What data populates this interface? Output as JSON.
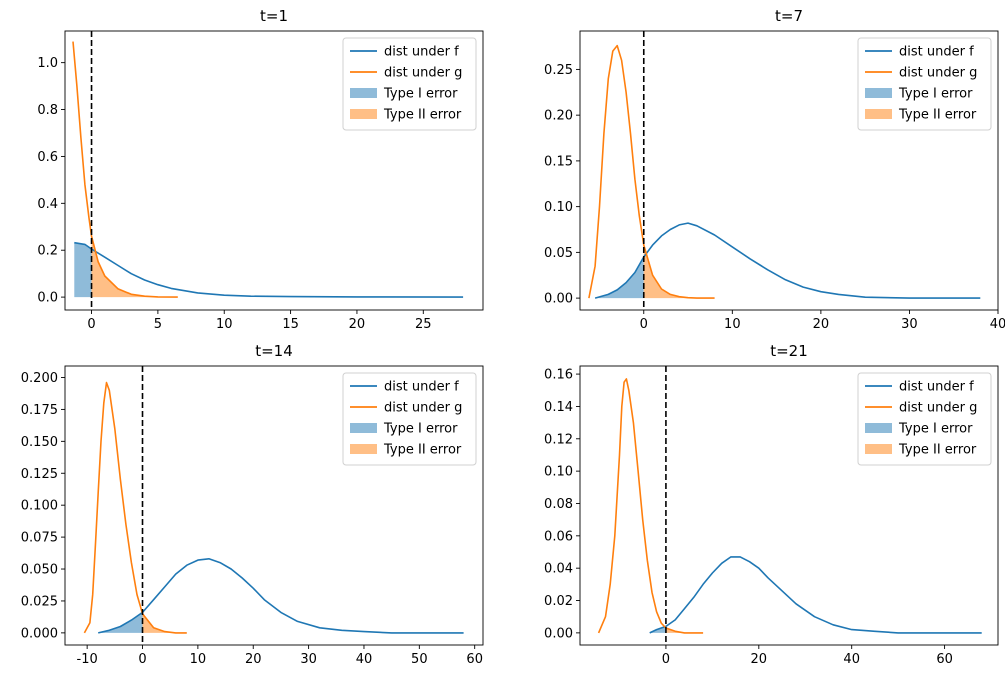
{
  "colors": {
    "f": "#1f77b4",
    "g": "#ff7f0e",
    "type1_fill": "#8fbbd9",
    "type2_fill": "#ffbf86",
    "threshold": "#000000"
  },
  "legend": {
    "placement": "top-right",
    "entries": [
      "dist under f",
      "dist under g",
      "Type I error",
      "Type II error"
    ]
  },
  "chart_data": [
    {
      "type": "line",
      "title": "t=1",
      "xlim": [
        -2.0,
        29.5
      ],
      "ylim": [
        -0.055,
        1.135
      ],
      "xticks": [
        0,
        5,
        10,
        15,
        20,
        25
      ],
      "yticks": [
        0.0,
        0.2,
        0.4,
        0.6,
        0.8,
        1.0
      ],
      "ytick_labels": [
        "0.0",
        "0.2",
        "0.4",
        "0.6",
        "0.8",
        "1.0"
      ],
      "threshold_x": 0,
      "series": [
        {
          "name": "dist under f",
          "x": [
            -1.3,
            -0.5,
            0,
            1,
            2,
            3,
            4,
            5,
            6,
            8,
            10,
            12,
            15,
            20,
            28
          ],
          "y": [
            0.232,
            0.225,
            0.205,
            0.17,
            0.135,
            0.1,
            0.073,
            0.053,
            0.037,
            0.018,
            0.008,
            0.004,
            0.002,
            0.001,
            0.0
          ]
        },
        {
          "name": "dist under g",
          "x": [
            -1.4,
            -1.1,
            -0.8,
            -0.5,
            -0.2,
            0,
            0.5,
            1,
            2,
            3,
            4,
            5,
            6.5
          ],
          "y": [
            1.09,
            0.9,
            0.68,
            0.48,
            0.34,
            0.26,
            0.15,
            0.09,
            0.035,
            0.012,
            0.004,
            0.001,
            0.0
          ]
        }
      ]
    },
    {
      "type": "line",
      "title": "t=7",
      "xlim": [
        -7.2,
        40.0
      ],
      "ylim": [
        -0.013,
        0.292
      ],
      "xticks": [
        0,
        10,
        20,
        30,
        40
      ],
      "yticks": [
        0.0,
        0.05,
        0.1,
        0.15,
        0.2,
        0.25
      ],
      "ytick_labels": [
        "0.00",
        "0.05",
        "0.10",
        "0.15",
        "0.20",
        "0.25"
      ],
      "threshold_x": 0,
      "series": [
        {
          "name": "dist under f",
          "x": [
            -5.5,
            -4,
            -3,
            -2,
            -1,
            0,
            1,
            2,
            3,
            4,
            5,
            6,
            8,
            10,
            12,
            14,
            16,
            18,
            20,
            22,
            25,
            30,
            38
          ],
          "y": [
            0.0,
            0.004,
            0.009,
            0.017,
            0.028,
            0.045,
            0.058,
            0.068,
            0.075,
            0.08,
            0.082,
            0.079,
            0.069,
            0.056,
            0.043,
            0.031,
            0.02,
            0.012,
            0.007,
            0.004,
            0.001,
            0.0,
            0.0
          ]
        },
        {
          "name": "dist under g",
          "x": [
            -6.2,
            -5.5,
            -5,
            -4.5,
            -4,
            -3.5,
            -3,
            -2.5,
            -2,
            -1.5,
            -1,
            -0.5,
            0,
            1,
            2,
            3,
            4,
            5,
            6,
            8
          ],
          "y": [
            0.0,
            0.035,
            0.1,
            0.18,
            0.24,
            0.27,
            0.276,
            0.26,
            0.225,
            0.18,
            0.13,
            0.09,
            0.058,
            0.025,
            0.01,
            0.004,
            0.0015,
            0.0005,
            0.0,
            0.0
          ]
        }
      ]
    },
    {
      "type": "line",
      "title": "t=14",
      "xlim": [
        -14.0,
        61.5
      ],
      "ylim": [
        -0.0095,
        0.209
      ],
      "xticks": [
        -10,
        0,
        10,
        20,
        30,
        40,
        50,
        60
      ],
      "yticks": [
        0.0,
        0.025,
        0.05,
        0.075,
        0.1,
        0.125,
        0.15,
        0.175,
        0.2
      ],
      "ytick_labels": [
        "0.000",
        "0.025",
        "0.050",
        "0.075",
        "0.100",
        "0.125",
        "0.150",
        "0.175",
        "0.200"
      ],
      "threshold_x": 0,
      "series": [
        {
          "name": "dist under f",
          "x": [
            -8,
            -6,
            -4,
            -2,
            0,
            2,
            4,
            6,
            8,
            10,
            12,
            14,
            16,
            18,
            20,
            22,
            25,
            28,
            32,
            36,
            40,
            45,
            50,
            58
          ],
          "y": [
            0.0,
            0.002,
            0.005,
            0.01,
            0.016,
            0.026,
            0.036,
            0.046,
            0.053,
            0.057,
            0.058,
            0.055,
            0.05,
            0.043,
            0.035,
            0.026,
            0.016,
            0.009,
            0.004,
            0.002,
            0.001,
            0.0,
            0.0,
            0.0
          ]
        },
        {
          "name": "dist under g",
          "x": [
            -10.5,
            -9.5,
            -9,
            -8.5,
            -8,
            -7.5,
            -7,
            -6.5,
            -6,
            -5,
            -4,
            -3,
            -2,
            -1,
            0,
            2,
            4,
            6,
            8
          ],
          "y": [
            0.0,
            0.008,
            0.03,
            0.07,
            0.11,
            0.15,
            0.18,
            0.196,
            0.19,
            0.16,
            0.12,
            0.085,
            0.055,
            0.03,
            0.015,
            0.004,
            0.001,
            0.0,
            0.0
          ]
        }
      ]
    },
    {
      "type": "line",
      "title": "t=21",
      "xlim": [
        -18.5,
        71.5
      ],
      "ylim": [
        -0.0075,
        0.165
      ],
      "xticks": [
        0,
        20,
        40,
        60
      ],
      "yticks": [
        0.0,
        0.02,
        0.04,
        0.06,
        0.08,
        0.1,
        0.12,
        0.14,
        0.16
      ],
      "ytick_labels": [
        "0.00",
        "0.02",
        "0.04",
        "0.06",
        "0.08",
        "0.10",
        "0.12",
        "0.14",
        "0.16"
      ],
      "threshold_x": 0,
      "series": [
        {
          "name": "dist under f",
          "x": [
            -3.5,
            -2,
            0,
            2,
            4,
            6,
            8,
            10,
            12,
            14,
            16,
            18,
            20,
            22,
            25,
            28,
            32,
            36,
            40,
            45,
            50,
            55,
            60,
            68
          ],
          "y": [
            0.0,
            0.002,
            0.004,
            0.008,
            0.015,
            0.022,
            0.03,
            0.037,
            0.043,
            0.047,
            0.047,
            0.044,
            0.04,
            0.034,
            0.026,
            0.018,
            0.01,
            0.005,
            0.002,
            0.001,
            0.0,
            0.0,
            0.0,
            0.0
          ]
        },
        {
          "name": "dist under g",
          "x": [
            -14.5,
            -13,
            -12,
            -11,
            -10,
            -9.5,
            -9,
            -8.5,
            -8,
            -7,
            -6,
            -5,
            -4,
            -3,
            -2,
            -1,
            0,
            2,
            4,
            8
          ],
          "y": [
            0.0,
            0.01,
            0.03,
            0.06,
            0.11,
            0.14,
            0.155,
            0.157,
            0.15,
            0.13,
            0.1,
            0.07,
            0.045,
            0.025,
            0.013,
            0.006,
            0.003,
            0.001,
            0.0,
            0.0
          ]
        }
      ]
    }
  ]
}
